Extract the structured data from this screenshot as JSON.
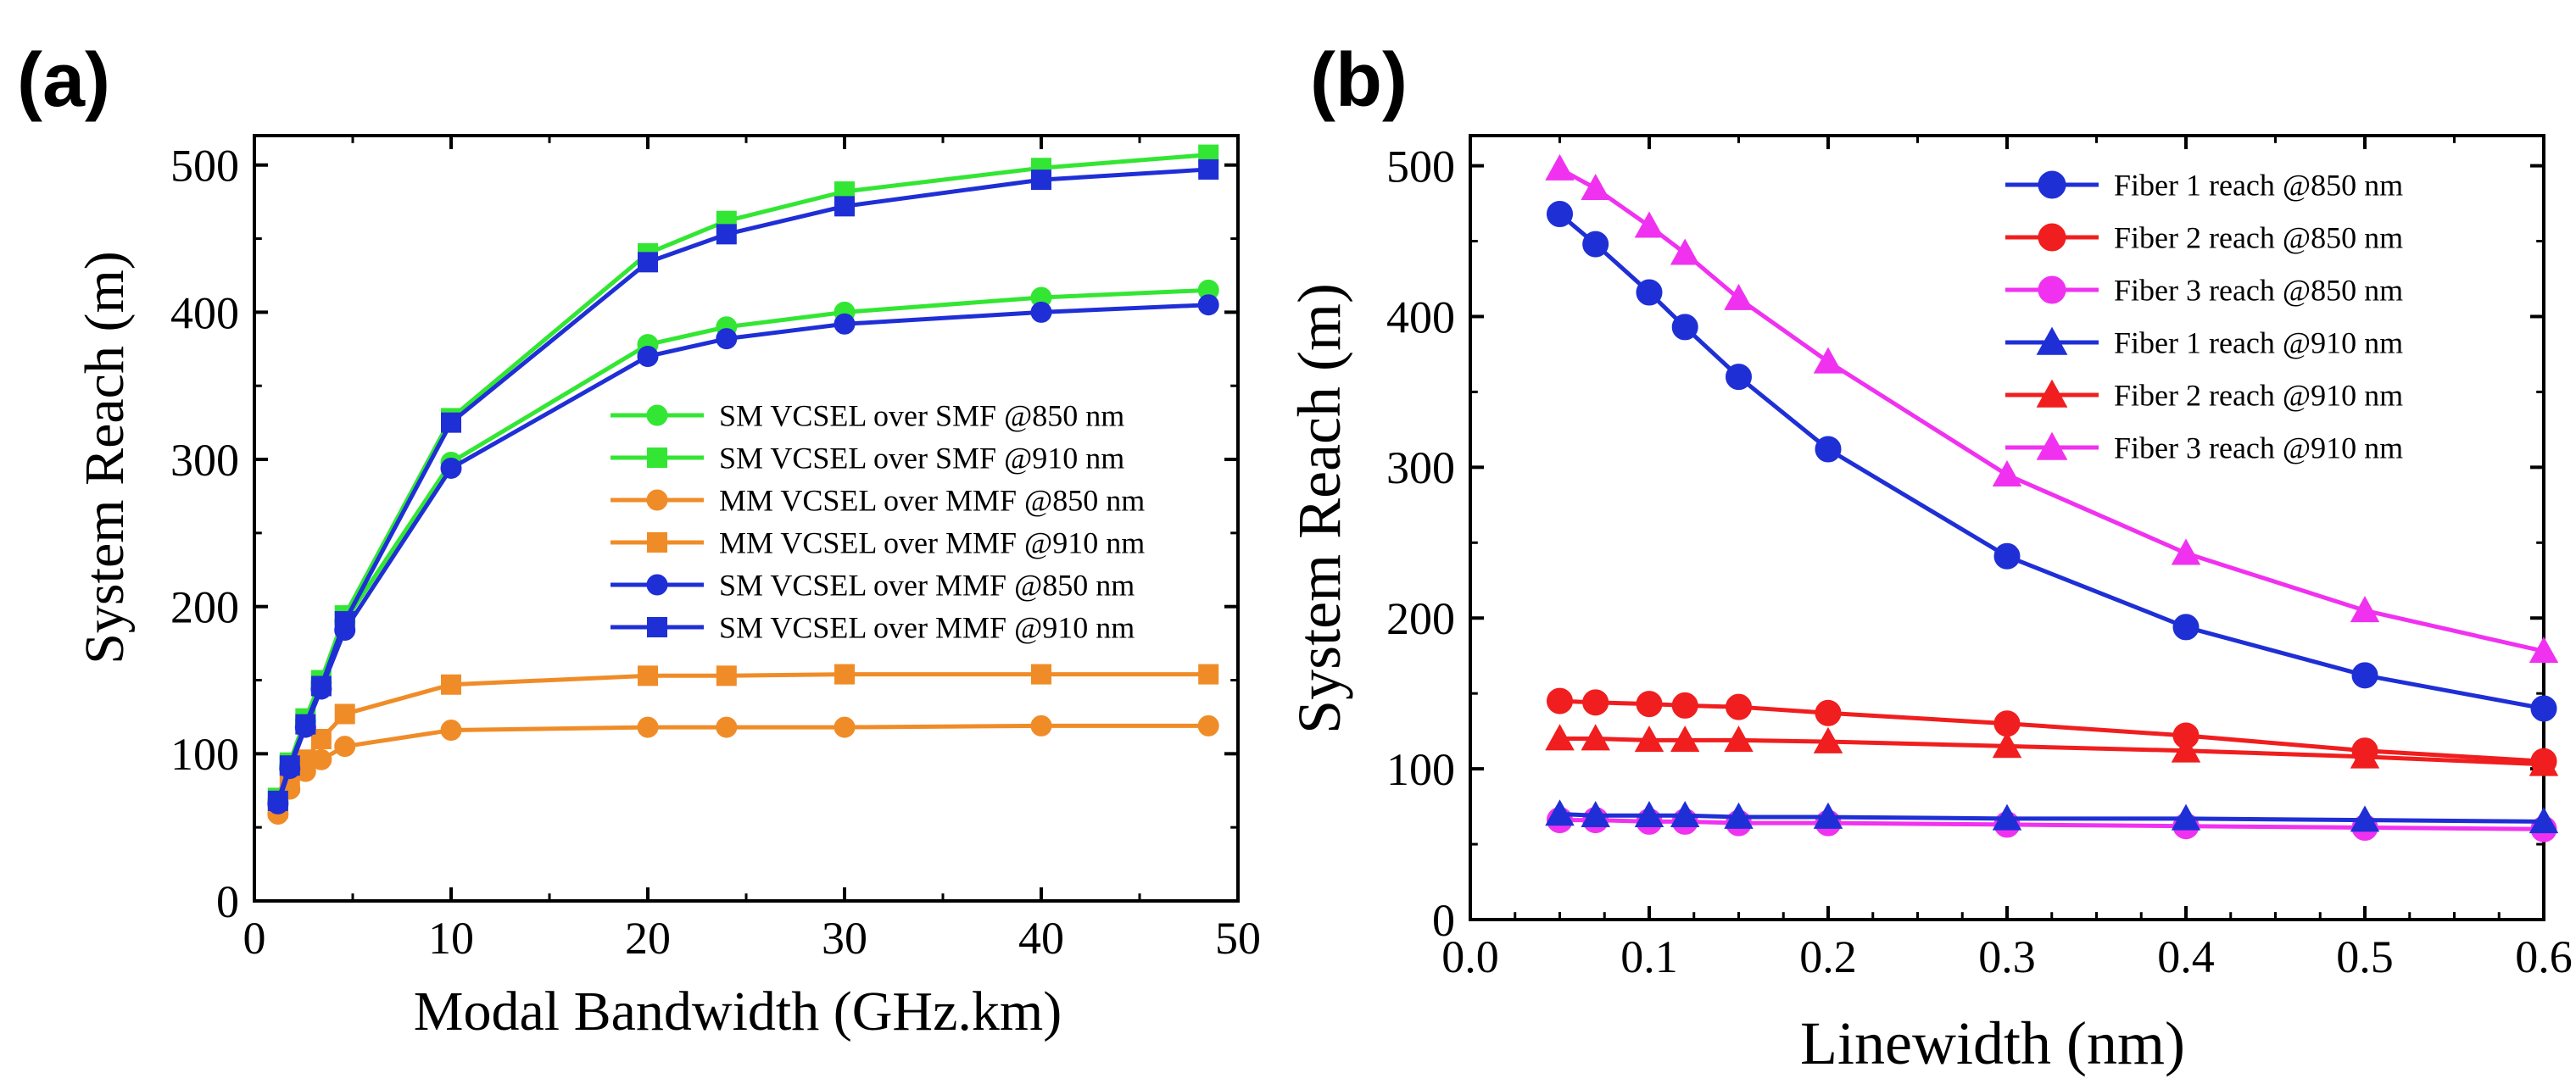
{
  "chart_data": [
    {
      "id": "a",
      "panel_label": "(a)",
      "type": "line",
      "title": "",
      "xlabel": "Modal Bandwidth (GHz.km)",
      "ylabel": "System Reach (m)",
      "xlim": [
        0,
        50
      ],
      "ylim": [
        0,
        520
      ],
      "xticks": [
        0,
        10,
        20,
        30,
        40,
        50
      ],
      "yticks": [
        0,
        100,
        200,
        300,
        400,
        500
      ],
      "xtick_labels": [
        "0",
        "10",
        "20",
        "30",
        "40",
        "50"
      ],
      "ytick_labels": [
        "0",
        "100",
        "200",
        "300",
        "400",
        "500"
      ],
      "grid": false,
      "legend_position": "center-right",
      "series": [
        {
          "name": "SM VCSEL over SMF @850 nm",
          "color": "#33e633",
          "marker": "circle",
          "x": [
            1.2,
            1.8,
            2.6,
            3.4,
            4.6,
            10,
            20,
            24,
            30,
            40,
            48.5
          ],
          "y": [
            68,
            92,
            122,
            148,
            190,
            298,
            378,
            390,
            400,
            410,
            415
          ]
        },
        {
          "name": "SM VCSEL over SMF @910 nm",
          "color": "#33e633",
          "marker": "square",
          "x": [
            1.2,
            1.8,
            2.6,
            3.4,
            4.6,
            10,
            20,
            24,
            30,
            40,
            48.5
          ],
          "y": [
            70,
            94,
            124,
            150,
            194,
            328,
            440,
            462,
            482,
            498,
            507
          ]
        },
        {
          "name": "MM VCSEL over MMF @850 nm",
          "color": "#f08c28",
          "marker": "circle",
          "x": [
            1.2,
            1.8,
            2.6,
            3.4,
            4.6,
            10,
            20,
            24,
            30,
            40,
            48.5
          ],
          "y": [
            59,
            76,
            88,
            96,
            105,
            116,
            118,
            118,
            118,
            119,
            119
          ]
        },
        {
          "name": "MM VCSEL over MMF @910 nm",
          "color": "#f08c28",
          "marker": "square",
          "x": [
            1.2,
            1.8,
            2.6,
            3.4,
            4.6,
            10,
            20,
            24,
            30,
            40,
            48.5
          ],
          "y": [
            63,
            80,
            96,
            110,
            127,
            147,
            153,
            153,
            154,
            154,
            154
          ]
        },
        {
          "name": "SM VCSEL over MMF @850 nm",
          "color": "#1f2fd6",
          "marker": "circle",
          "x": [
            1.2,
            1.8,
            2.6,
            3.4,
            4.6,
            10,
            20,
            24,
            30,
            40,
            48.5
          ],
          "y": [
            66,
            90,
            118,
            144,
            184,
            294,
            370,
            382,
            392,
            400,
            405
          ]
        },
        {
          "name": "SM VCSEL over MMF @910 nm",
          "color": "#1f2fd6",
          "marker": "square",
          "x": [
            1.2,
            1.8,
            2.6,
            3.4,
            4.6,
            10,
            20,
            24,
            30,
            40,
            48.5
          ],
          "y": [
            68,
            92,
            120,
            146,
            190,
            325,
            434,
            453,
            472,
            490,
            497
          ]
        }
      ]
    },
    {
      "id": "b",
      "panel_label": "(b)",
      "type": "line",
      "title": "",
      "xlabel": "Linewidth (nm)",
      "ylabel": "System Reach (m)",
      "xlim": [
        0,
        0.6
      ],
      "ylim": [
        0,
        520
      ],
      "xticks": [
        0,
        0.1,
        0.2,
        0.3,
        0.4,
        0.5,
        0.6
      ],
      "yticks": [
        0,
        100,
        200,
        300,
        400,
        500
      ],
      "xtick_labels": [
        "0.0",
        "0.1",
        "0.2",
        "0.3",
        "0.4",
        "0.5",
        "0.6"
      ],
      "ytick_labels": [
        "0",
        "100",
        "200",
        "300",
        "400",
        "500"
      ],
      "grid": false,
      "legend_position": "top-right",
      "series": [
        {
          "name": "Fiber 1 reach @850 nm",
          "color": "#1f2fd6",
          "marker": "circle",
          "x": [
            0.05,
            0.07,
            0.1,
            0.12,
            0.15,
            0.2,
            0.3,
            0.4,
            0.5,
            0.6
          ],
          "y": [
            468,
            448,
            416,
            393,
            360,
            312,
            241,
            194,
            162,
            140
          ]
        },
        {
          "name": "Fiber 2 reach @850 nm",
          "color": "#f01e1e",
          "marker": "circle",
          "x": [
            0.05,
            0.07,
            0.1,
            0.12,
            0.15,
            0.2,
            0.3,
            0.4,
            0.5,
            0.6
          ],
          "y": [
            145,
            144,
            143,
            142,
            141,
            137,
            130,
            122,
            112,
            105
          ]
        },
        {
          "name": "Fiber 3 reach @850 nm",
          "color": "#f032f0",
          "marker": "circle",
          "x": [
            0.05,
            0.07,
            0.1,
            0.12,
            0.15,
            0.2,
            0.3,
            0.4,
            0.5,
            0.6
          ],
          "y": [
            66,
            66,
            65,
            65,
            64,
            64,
            63,
            62,
            61,
            60
          ]
        },
        {
          "name": "Fiber 1 reach @910 nm",
          "color": "#1f2fd6",
          "marker": "triangle",
          "x": [
            0.05,
            0.07,
            0.1,
            0.12,
            0.15,
            0.2,
            0.3,
            0.4,
            0.5,
            0.6
          ],
          "y": [
            70,
            69,
            69,
            69,
            68,
            68,
            67,
            67,
            66,
            65
          ]
        },
        {
          "name": "Fiber 2 reach @910 nm",
          "color": "#f01e1e",
          "marker": "triangle",
          "x": [
            0.05,
            0.07,
            0.1,
            0.12,
            0.15,
            0.2,
            0.3,
            0.4,
            0.5,
            0.6
          ],
          "y": [
            120,
            120,
            119,
            119,
            119,
            118,
            115,
            112,
            108,
            103
          ]
        },
        {
          "name": "Fiber 3 reach @910 nm",
          "color": "#f032f0",
          "marker": "triangle",
          "x": [
            0.05,
            0.07,
            0.1,
            0.12,
            0.15,
            0.2,
            0.3,
            0.4,
            0.5,
            0.6
          ],
          "y": [
            498,
            485,
            460,
            442,
            412,
            370,
            295,
            243,
            205,
            178
          ]
        }
      ]
    }
  ]
}
